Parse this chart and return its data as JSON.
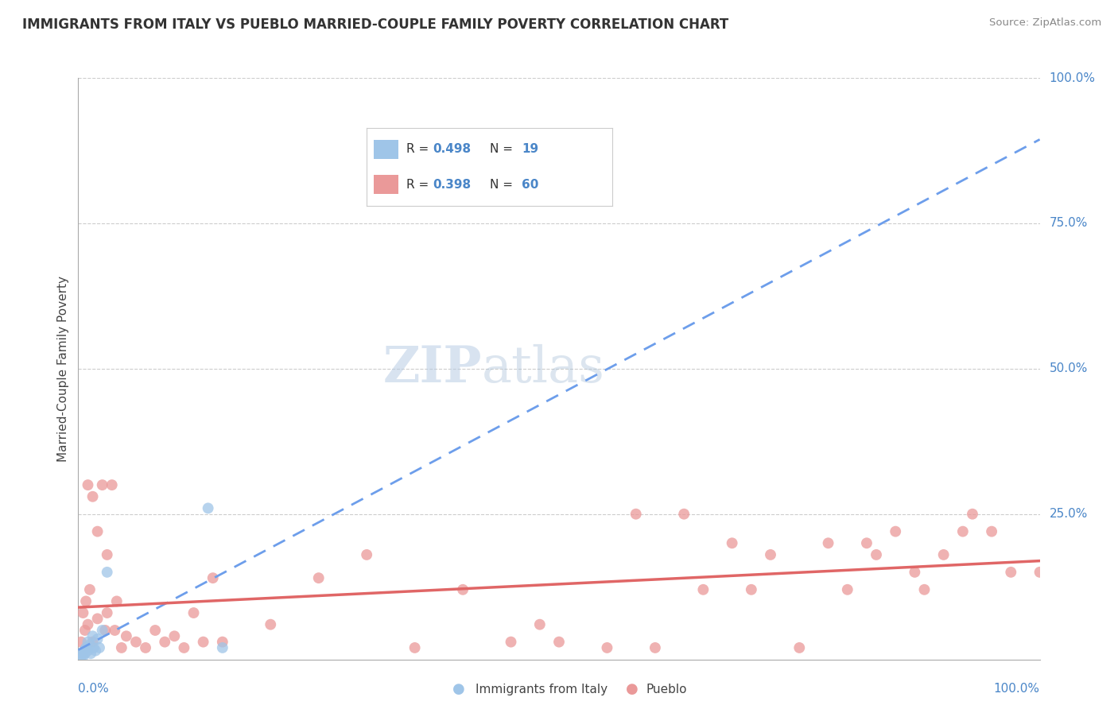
{
  "title": "IMMIGRANTS FROM ITALY VS PUEBLO MARRIED-COUPLE FAMILY POVERTY CORRELATION CHART",
  "source": "Source: ZipAtlas.com",
  "ylabel": "Married-Couple Family Poverty",
  "legend_label1": "Immigrants from Italy",
  "legend_label2": "Pueblo",
  "r1": "0.498",
  "n1": "19",
  "r2": "0.398",
  "n2": "60",
  "blue_x": [
    0.3,
    0.4,
    0.5,
    0.6,
    0.7,
    0.8,
    1.0,
    1.0,
    1.2,
    1.3,
    1.5,
    1.6,
    1.8,
    2.0,
    2.2,
    2.5,
    3.0,
    13.5,
    15.0
  ],
  "blue_y": [
    0.5,
    1.0,
    0.5,
    1.5,
    1.0,
    2.0,
    3.0,
    1.5,
    2.5,
    1.0,
    4.0,
    2.0,
    1.5,
    3.5,
    2.0,
    5.0,
    15.0,
    26.0,
    2.0
  ],
  "pink_x": [
    0.3,
    0.5,
    0.7,
    0.8,
    1.0,
    1.0,
    1.2,
    1.5,
    1.5,
    2.0,
    2.0,
    2.5,
    2.8,
    3.0,
    3.0,
    3.5,
    3.8,
    4.0,
    4.5,
    5.0,
    6.0,
    7.0,
    8.0,
    9.0,
    10.0,
    11.0,
    12.0,
    13.0,
    14.0,
    15.0,
    20.0,
    25.0,
    30.0,
    35.0,
    40.0,
    45.0,
    48.0,
    50.0,
    55.0,
    58.0,
    60.0,
    63.0,
    65.0,
    68.0,
    70.0,
    72.0,
    75.0,
    78.0,
    80.0,
    82.0,
    83.0,
    85.0,
    87.0,
    88.0,
    90.0,
    92.0,
    93.0,
    95.0,
    97.0,
    100.0
  ],
  "pink_y": [
    3.0,
    8.0,
    5.0,
    10.0,
    30.0,
    6.0,
    12.0,
    28.0,
    3.0,
    22.0,
    7.0,
    30.0,
    5.0,
    18.0,
    8.0,
    30.0,
    5.0,
    10.0,
    2.0,
    4.0,
    3.0,
    2.0,
    5.0,
    3.0,
    4.0,
    2.0,
    8.0,
    3.0,
    14.0,
    3.0,
    6.0,
    14.0,
    18.0,
    2.0,
    12.0,
    3.0,
    6.0,
    3.0,
    2.0,
    25.0,
    2.0,
    25.0,
    12.0,
    20.0,
    12.0,
    18.0,
    2.0,
    20.0,
    12.0,
    20.0,
    18.0,
    22.0,
    15.0,
    12.0,
    18.0,
    22.0,
    25.0,
    22.0,
    15.0,
    15.0
  ],
  "blue_color": "#9fc5e8",
  "pink_color": "#ea9999",
  "blue_line_color": "#6d9eeb",
  "pink_line_color": "#e06666",
  "watermark_color": "#c9daf8",
  "grid_color": "#cccccc",
  "background_color": "#ffffff",
  "tick_label_color": "#4a86c8",
  "xlim": [
    0,
    100
  ],
  "ylim": [
    0,
    100
  ],
  "yticks_pct": [
    0,
    25,
    50,
    75,
    100
  ],
  "ytick_labels": [
    "0.0%",
    "25.0%",
    "50.0%",
    "75.0%",
    "100.0%"
  ]
}
